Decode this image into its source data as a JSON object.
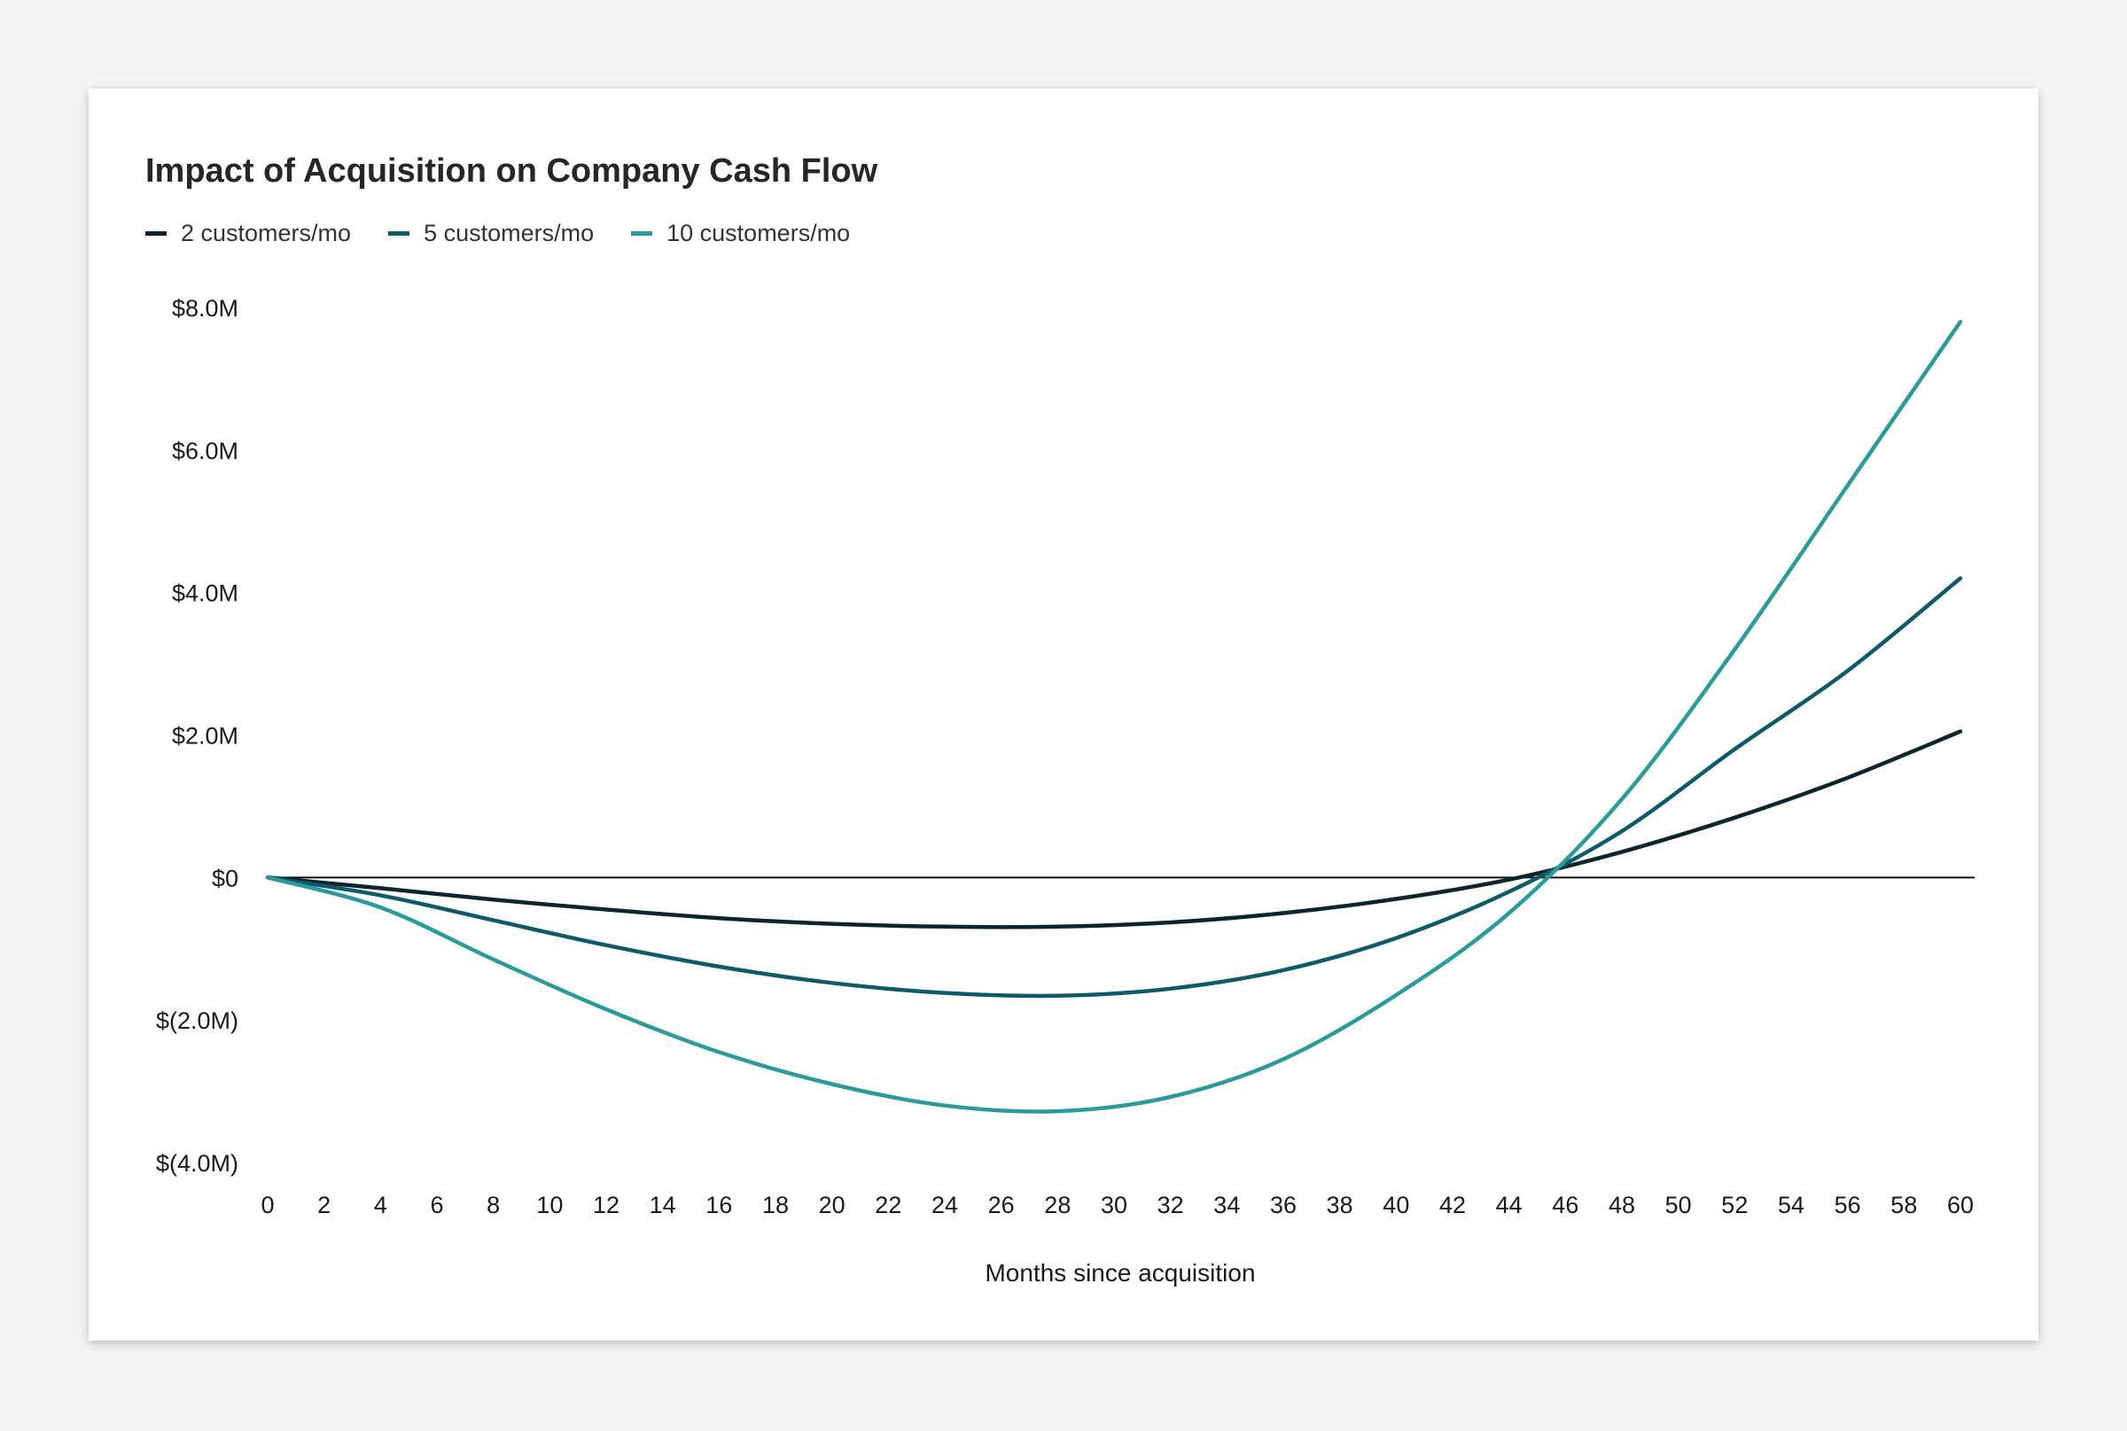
{
  "chart_data": {
    "type": "line",
    "title": "Impact of Acquisition on Company Cash Flow",
    "xlabel": "Months since acquisition",
    "ylabel": "",
    "xlim": [
      0,
      60
    ],
    "ylim": [
      -4000000,
      8000000
    ],
    "x_ticks": [
      0,
      2,
      4,
      6,
      8,
      10,
      12,
      14,
      16,
      18,
      20,
      22,
      24,
      26,
      28,
      30,
      32,
      34,
      36,
      38,
      40,
      42,
      44,
      46,
      48,
      50,
      52,
      54,
      56,
      58,
      60
    ],
    "y_ticks": [
      {
        "value": 8000000,
        "label": "$8.0M"
      },
      {
        "value": 6000000,
        "label": "$6.0M"
      },
      {
        "value": 4000000,
        "label": "$4.0M"
      },
      {
        "value": 2000000,
        "label": "$2.0M"
      },
      {
        "value": 0,
        "label": "$0"
      },
      {
        "value": -2000000,
        "label": "$(2.0M)"
      },
      {
        "value": -4000000,
        "label": "$(4.0M)"
      }
    ],
    "grid": false,
    "legend_position": "top-left",
    "series": [
      {
        "name": "2 customers/mo",
        "color": "#0b252b",
        "x": [
          0,
          4,
          8,
          12,
          16,
          20,
          24,
          28,
          32,
          36,
          40,
          44,
          48,
          52,
          56,
          60
        ],
        "values": [
          0,
          -150000,
          -310000,
          -450000,
          -570000,
          -650000,
          -690000,
          -690000,
          -630000,
          -500000,
          -300000,
          -30000,
          360000,
          840000,
          1400000,
          2050000
        ]
      },
      {
        "name": "5 customers/mo",
        "color": "#0e5a6b",
        "x": [
          0,
          4,
          8,
          12,
          16,
          20,
          24,
          28,
          32,
          36,
          40,
          44,
          48,
          52,
          56,
          60
        ],
        "values": [
          0,
          -250000,
          -600000,
          -950000,
          -1250000,
          -1480000,
          -1620000,
          -1660000,
          -1560000,
          -1300000,
          -850000,
          -200000,
          650000,
          1800000,
          2900000,
          4200000
        ]
      },
      {
        "name": "10 customers/mo",
        "color": "#2a9a9c",
        "x": [
          0,
          4,
          8,
          12,
          16,
          20,
          24,
          28,
          32,
          36,
          40,
          44,
          48,
          52,
          56,
          60
        ],
        "values": [
          0,
          -420000,
          -1150000,
          -1850000,
          -2450000,
          -2900000,
          -3200000,
          -3280000,
          -3080000,
          -2550000,
          -1650000,
          -500000,
          1100000,
          3200000,
          5500000,
          7800000
        ]
      }
    ]
  }
}
